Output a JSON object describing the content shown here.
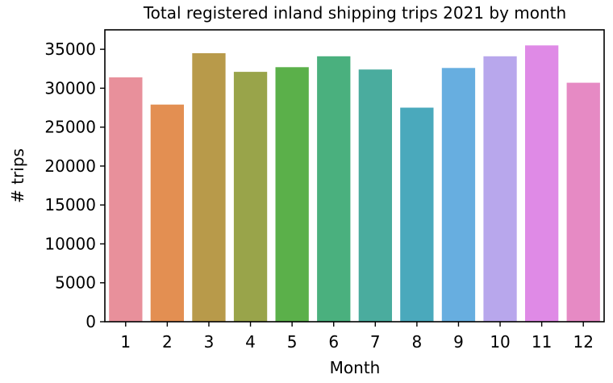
{
  "chart_data": {
    "type": "bar",
    "title": "Total registered inland shipping trips 2021 by month",
    "xlabel": "Month",
    "ylabel": "# trips",
    "categories": [
      "1",
      "2",
      "3",
      "4",
      "5",
      "6",
      "7",
      "8",
      "9",
      "10",
      "11",
      "12"
    ],
    "values": [
      31400,
      27900,
      34500,
      32100,
      32700,
      34100,
      32400,
      27500,
      32600,
      34100,
      35500,
      30700
    ],
    "colors": [
      "#e8909b",
      "#e38f52",
      "#b89a4a",
      "#99a44a",
      "#5bb04a",
      "#4ab07e",
      "#4aac9e",
      "#4aa9bc",
      "#67aee0",
      "#b8a7ec",
      "#df8ae6",
      "#e68ac4"
    ],
    "ylim": [
      0,
      37500
    ],
    "yticks": [
      0,
      5000,
      10000,
      15000,
      20000,
      25000,
      30000,
      35000
    ],
    "grid": false,
    "legend": "none"
  }
}
